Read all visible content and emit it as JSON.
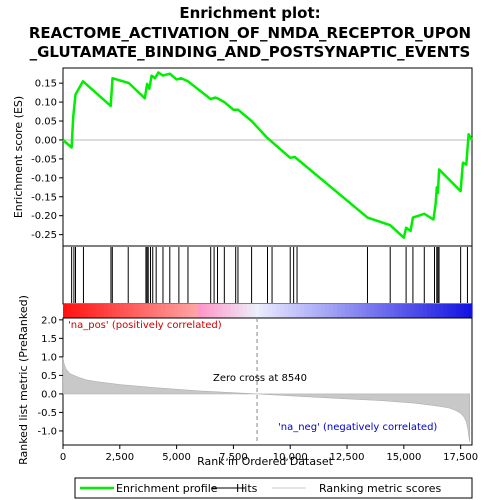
{
  "chart_data": {
    "type": "line",
    "title_line1": "Enrichment plot:",
    "title_line2": "REACTOME_ACTIVATION_OF_NMDA_RECEPTOR_UPON",
    "title_line3": "_GLUTAMATE_BINDING_AND_POSTSYNAPTIC_EVENTS",
    "colors": {
      "es_line": "#00ee00",
      "hits": "#000000",
      "metric_fill": "#c8c8c8",
      "zero_cross": "#888888",
      "pos_label": "#cc0000",
      "neg_label": "#0000cc"
    },
    "es_panel": {
      "ylabel": "Enrichment score (ES)",
      "ylim": [
        -0.28,
        0.19
      ],
      "yticks": [
        "0.15",
        "0.10",
        "0.05",
        "0.00",
        "-0.05",
        "-0.10",
        "-0.15",
        "-0.20",
        "-0.25"
      ],
      "ytick_values": [
        0.15,
        0.1,
        0.05,
        0.0,
        -0.05,
        -0.1,
        -0.15,
        -0.2,
        -0.25
      ],
      "xlim": [
        0,
        18000
      ],
      "es_curve": {
        "x": [
          0,
          380,
          450,
          550,
          880,
          2100,
          2180,
          2900,
          3600,
          3700,
          3800,
          3900,
          4050,
          4200,
          4400,
          4700,
          5000,
          5200,
          5500,
          6500,
          6700,
          6800,
          7100,
          7500,
          7700,
          8300,
          9000,
          10000,
          10200,
          13400,
          14400,
          15000,
          15100,
          15300,
          15400,
          15900,
          16300,
          16400,
          16450,
          16500,
          16550,
          17500,
          17600,
          17750,
          17850,
          18000
        ],
        "y": [
          0.0,
          -0.02,
          0.06,
          0.12,
          0.155,
          0.09,
          0.163,
          0.15,
          0.11,
          0.148,
          0.135,
          0.17,
          0.163,
          0.178,
          0.17,
          0.175,
          0.16,
          0.163,
          0.155,
          0.108,
          0.112,
          0.11,
          0.1,
          0.08,
          0.08,
          0.05,
          0.005,
          -0.047,
          -0.045,
          -0.205,
          -0.225,
          -0.258,
          -0.232,
          -0.24,
          -0.205,
          -0.195,
          -0.21,
          -0.17,
          -0.125,
          -0.14,
          -0.078,
          -0.135,
          -0.06,
          -0.065,
          0.015,
          0.0
        ]
      },
      "hits_x": [
        380,
        480,
        550,
        900,
        2110,
        2170,
        2870,
        3650,
        3700,
        3750,
        3850,
        3950,
        4100,
        4400,
        4700,
        5100,
        5500,
        6500,
        6650,
        6800,
        7100,
        7600,
        7700,
        8300,
        9000,
        9200,
        10000,
        10150,
        10300,
        13400,
        14400,
        15100,
        15400,
        15900,
        16350,
        16450,
        16500,
        16550,
        17500,
        17800
      ]
    },
    "rank_panel": {
      "ylabel": "Ranked list metric (PreRanked)",
      "xlabel": "Rank in Ordered Dataset",
      "xticks": [
        "0",
        "2,500",
        "5,000",
        "7,500",
        "10,000",
        "12,500",
        "15,000",
        "17,500"
      ],
      "xtick_values": [
        0,
        2500,
        5000,
        7500,
        10000,
        12500,
        15000,
        17500
      ],
      "yticks": [
        "2.0",
        "1.5",
        "1.0",
        "0.5",
        "0.0",
        "-0.5",
        "-1.0"
      ],
      "ytick_values": [
        2.0,
        1.5,
        1.0,
        0.5,
        0.0,
        -0.5,
        -1.0
      ],
      "ylim": [
        -1.38,
        2.05
      ],
      "metric_curve": {
        "x": [
          0,
          50,
          150,
          300,
          600,
          1000,
          1500,
          2500,
          4000,
          6000,
          8540,
          10000,
          12000,
          14000,
          15500,
          16500,
          17000,
          17300,
          17500,
          17650,
          17750,
          17820,
          17860,
          17900
        ],
        "y": [
          1.0,
          0.8,
          0.65,
          0.55,
          0.47,
          0.38,
          0.33,
          0.25,
          0.17,
          0.08,
          0.0,
          -0.05,
          -0.12,
          -0.18,
          -0.25,
          -0.33,
          -0.38,
          -0.45,
          -0.52,
          -0.62,
          -0.75,
          -0.95,
          -1.15,
          -1.3
        ]
      },
      "zero_cross_label": "Zero cross at 8540",
      "zero_cross_x": 8540,
      "pos_label": "'na_pos' (positively correlated)",
      "neg_label": "'na_neg' (negatively correlated)"
    },
    "legend": {
      "items": [
        {
          "label": "Enrichment profile",
          "color": "#00ee00"
        },
        {
          "label": "Hits",
          "color": "#000000"
        },
        {
          "label": "Ranking metric scores",
          "color": "#c8c8c8"
        }
      ]
    }
  }
}
